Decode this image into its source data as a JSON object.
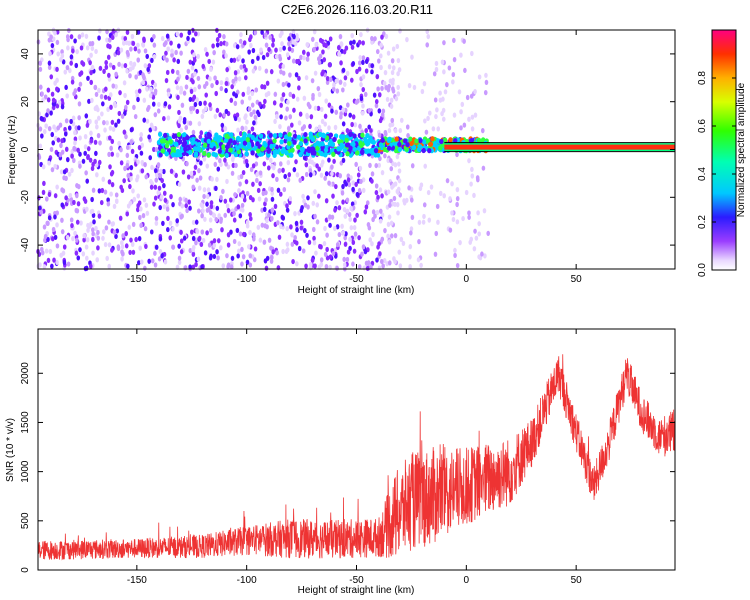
{
  "title": "C2E6.2026.116.03.20.R11",
  "chart_data": [
    {
      "type": "heatmap",
      "xlabel": "Height of straight line (km)",
      "ylabel": "Frequency (Hz)",
      "xlim": [
        -195,
        95
      ],
      "ylim": [
        -50,
        50
      ],
      "x_ticks": [
        -150,
        -100,
        -50,
        0,
        50
      ],
      "y_ticks": [
        -40,
        -20,
        0,
        20,
        40
      ],
      "colorbar": {
        "label": "Normalized spectral amplitude",
        "range": [
          0,
          1
        ],
        "ticks": [
          0.0,
          0.2,
          0.4,
          0.6,
          0.8
        ]
      },
      "features": {
        "scatter_region_x": [
          -195,
          10
        ],
        "dense_band_x": [
          -140,
          10
        ],
        "dense_band_freq": 0,
        "line_x": [
          -10,
          95
        ],
        "line_freq": 1,
        "line_amplitude": 0.9
      }
    },
    {
      "type": "line",
      "xlabel": "Height of straight line (km)",
      "ylabel": "SNR (10 * v/v)",
      "xlim": [
        -195,
        95
      ],
      "ylim": [
        0,
        2450
      ],
      "x_ticks": [
        -150,
        -100,
        -50,
        0,
        50
      ],
      "y_ticks": [
        0,
        500,
        1000,
        1500,
        2000
      ],
      "color": "#ee3333",
      "envelope": {
        "x": [
          -195,
          -170,
          -150,
          -120,
          -100,
          -80,
          -60,
          -40,
          -32,
          -25,
          -15,
          0,
          20,
          30,
          42,
          50,
          58,
          65,
          73,
          80,
          88,
          95
        ],
        "mid": [
          200,
          210,
          220,
          240,
          300,
          320,
          310,
          330,
          550,
          700,
          750,
          850,
          1000,
          1300,
          2000,
          1400,
          850,
          1300,
          2000,
          1600,
          1350,
          1400
        ],
        "amp": [
          100,
          100,
          100,
          120,
          150,
          200,
          200,
          200,
          450,
          500,
          500,
          400,
          350,
          250,
          200,
          200,
          200,
          200,
          200,
          200,
          200,
          250
        ]
      }
    }
  ]
}
